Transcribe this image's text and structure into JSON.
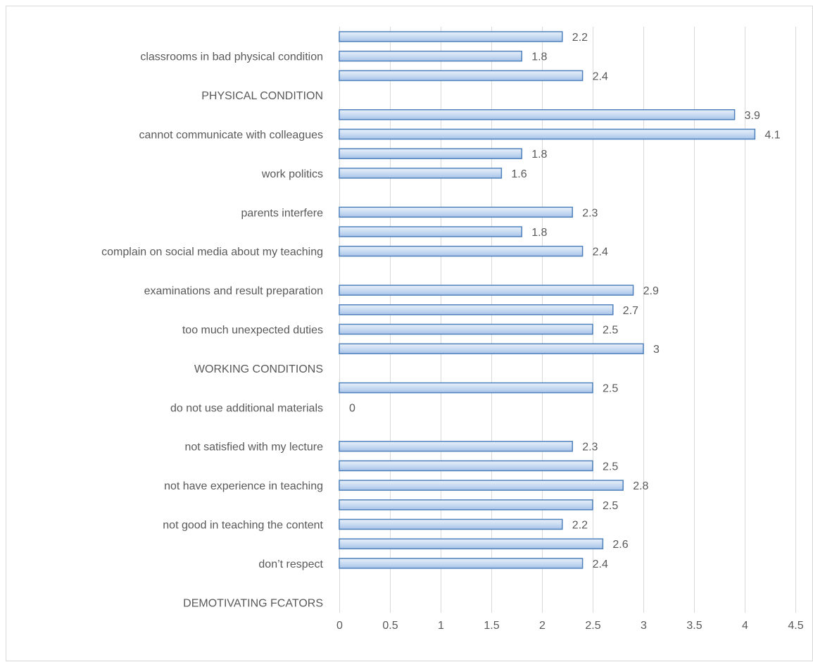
{
  "chart_data": {
    "type": "bar",
    "orientation": "horizontal",
    "title": "",
    "xlabel": "",
    "ylabel": "",
    "xlim": [
      0,
      4.5
    ],
    "xticks": [
      "0",
      "0.5",
      "1",
      "1.5",
      "2",
      "2.5",
      "3",
      "3.5",
      "4",
      "4.5"
    ],
    "grid": true,
    "bar_color": "#c6d9f1",
    "bar_border_color": "#4f81bd",
    "categories": [
      "",
      "classrooms in bad physical condition",
      "",
      "PHYSICAL CONDITION",
      "",
      "cannot communicate with colleagues",
      "",
      "work politics",
      "",
      "parents interfere",
      "",
      "complain on social media about my teaching",
      "",
      "examinations and result preparation",
      "",
      "too much unexpected duties",
      "",
      "WORKING CONDITIONS",
      "",
      "do not use additional materials",
      "",
      "not satisfied with my lecture",
      "",
      "not have experience in teaching",
      "",
      "not good in teaching the content",
      "",
      "don’t respect",
      "",
      "DEMOTIVATING FCATORS"
    ],
    "values": [
      2.2,
      1.8,
      2.4,
      null,
      3.9,
      4.1,
      1.8,
      1.6,
      null,
      2.3,
      1.8,
      2.4,
      null,
      2.9,
      2.7,
      2.5,
      3,
      null,
      2.5,
      0,
      null,
      2.3,
      2.5,
      2.8,
      2.5,
      2.2,
      2.6,
      2.4,
      null,
      null
    ],
    "data_labels": [
      "2.2",
      "1.8",
      "2.4",
      "",
      "3.9",
      "4.1",
      "1.8",
      "1.6",
      "",
      "2.3",
      "1.8",
      "2.4",
      "",
      "2.9",
      "2.7",
      "2.5",
      "3",
      "",
      "2.5",
      "0",
      "",
      "2.3",
      "2.5",
      "2.8",
      "2.5",
      "2.2",
      "2.6",
      "2.4",
      "",
      ""
    ]
  }
}
